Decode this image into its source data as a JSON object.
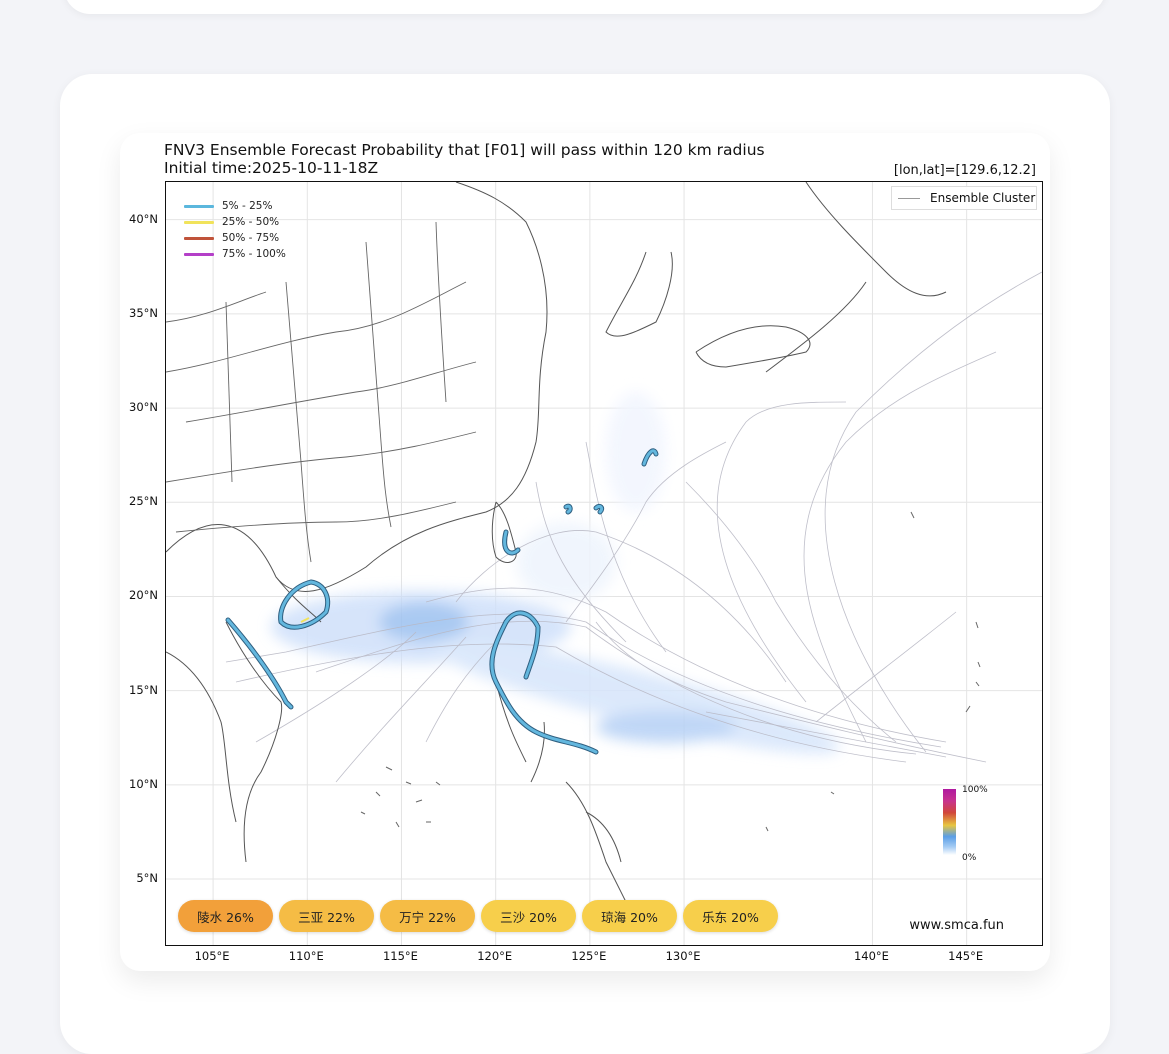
{
  "figure": {
    "title_line1": "FNV3 Ensemble Forecast Probability that [F01] will pass within 120 km radius",
    "title_line2": "Initial time:2025-10-11-18Z",
    "coordinates": "[lon,lat]=[129.6,12.2]",
    "website": "www.smca.fun"
  },
  "axes": {
    "lon_range": [
      102.5,
      149
    ],
    "lat_range": [
      1.5,
      42
    ],
    "y_ticks": [
      "40°N",
      "35°N",
      "30°N",
      "25°N",
      "20°N",
      "15°N",
      "10°N",
      "5°N"
    ],
    "y_values": [
      40,
      35,
      30,
      25,
      20,
      15,
      10,
      5
    ],
    "x_ticks": [
      "105°E",
      "110°E",
      "115°E",
      "120°E",
      "125°E",
      "130°E",
      "140°E",
      "145°E"
    ],
    "x_values": [
      105,
      110,
      115,
      120,
      125,
      130,
      140,
      145
    ],
    "grid": true
  },
  "legend": {
    "items": [
      {
        "label": "5% - 25%",
        "color": "#5bb7dd"
      },
      {
        "label": "25% - 50%",
        "color": "#f1e35b"
      },
      {
        "label": "50% - 75%",
        "color": "#c0533a"
      },
      {
        "label": "75% - 100%",
        "color": "#b43fc8"
      }
    ],
    "cluster_label": "Ensemble Cluster"
  },
  "colorbar": {
    "max_label": "100%",
    "min_label": "0%"
  },
  "pills": [
    {
      "label": "陵水 26%",
      "color": "#f2a03a"
    },
    {
      "label": "三亚 22%",
      "color": "#f5bc45"
    },
    {
      "label": "万宁 22%",
      "color": "#f5bc45"
    },
    {
      "label": "三沙 20%",
      "color": "#f7cf4b"
    },
    {
      "label": "琼海 20%",
      "color": "#f7cf4b"
    },
    {
      "label": "乐东 20%",
      "color": "#f7cf4b"
    }
  ]
}
